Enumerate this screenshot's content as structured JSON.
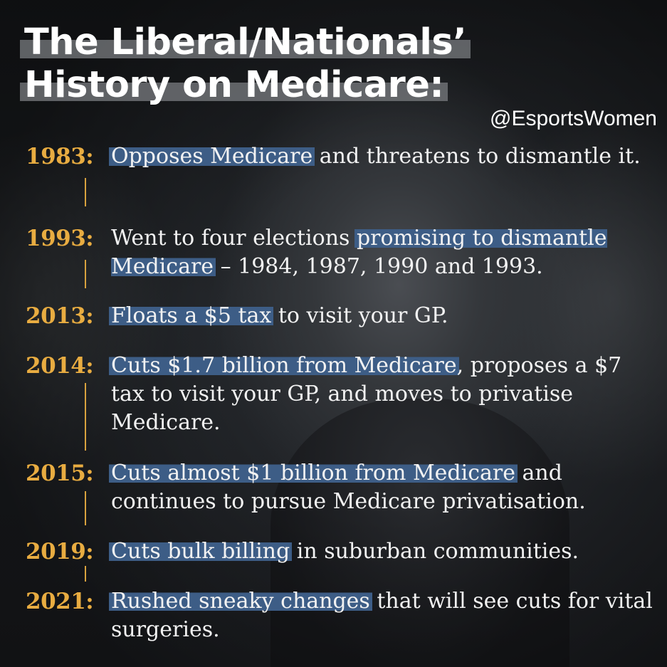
{
  "title": {
    "line1": "The Liberal/Nationals’",
    "line2": "History on Medicare:"
  },
  "handle": "@EsportsWomen",
  "colors": {
    "year": "#e8ac41",
    "highlight": "#3d5d86",
    "text": "#f2f2f2",
    "background": "#1c1e21"
  },
  "timeline": [
    {
      "year": "1983:",
      "highlight": "Opposes Medicare",
      "rest": " and threatens to dismantle it."
    },
    {
      "year": "1993:",
      "before": "Went to four elections ",
      "highlight": "promising to dismantle Medicare",
      "rest": " – 1984, 1987, 1990 and 1993."
    },
    {
      "year": "2013:",
      "highlight": "Floats a $5 tax",
      "rest": " to visit your GP."
    },
    {
      "year": "2014:",
      "highlight": "Cuts $1.7 billion from Medicare",
      "rest": ", proposes a $7 tax to visit your GP, and moves to privatise Medicare."
    },
    {
      "year": "2015:",
      "highlight": "Cuts almost $1 billion from Medicare",
      "rest": " and continues to pursue Medicare privatisation."
    },
    {
      "year": "2019:",
      "highlight": "Cuts bulk billing",
      "rest": " in suburban communities."
    },
    {
      "year": "2021:",
      "highlight": "Rushed sneaky changes",
      "rest": " that will see cuts for vital surgeries."
    }
  ]
}
